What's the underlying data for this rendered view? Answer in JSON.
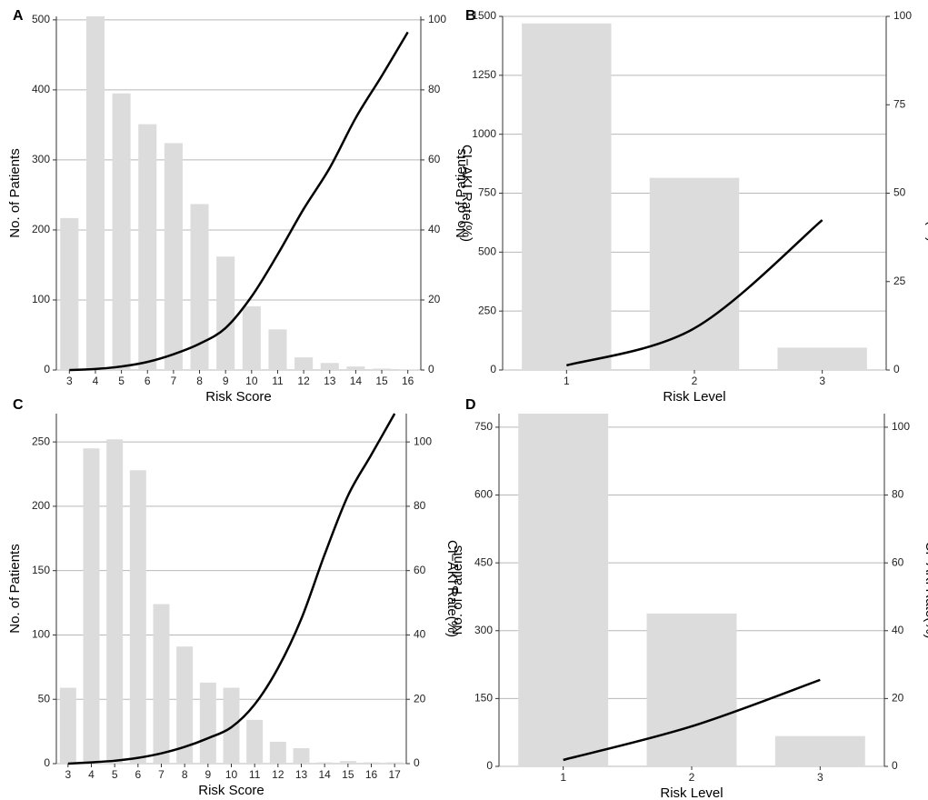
{
  "chart_data": [
    {
      "type": "bar",
      "title": "A",
      "x_label": "Risk Score",
      "y_label": "No. of Patients",
      "y2_label": "CI−AKI Rate(%)",
      "categories": [
        "3",
        "4",
        "5",
        "6",
        "7",
        "8",
        "9",
        "10",
        "11",
        "12",
        "13",
        "14",
        "15",
        "16"
      ],
      "series": [
        {
          "type": "bar",
          "color": "#dcdcdc",
          "values": [
            217,
            505,
            395,
            351,
            324,
            237,
            162,
            91,
            58,
            18,
            10,
            5,
            2,
            1
          ]
        },
        {
          "type": "line",
          "color": "#000000",
          "axis": "y2",
          "values": [
            0,
            0.3,
            1,
            2.3,
            4.5,
            7.5,
            12,
            21,
            33,
            46,
            57.7,
            72,
            84,
            96.5
          ]
        }
      ],
      "ylim": [
        0,
        505
      ],
      "yticks": [
        0,
        100,
        200,
        300,
        400,
        500
      ],
      "y2lim": [
        0,
        101
      ],
      "y2ticks": [
        0,
        20,
        40,
        60,
        80,
        100
      ],
      "grid": true
    },
    {
      "type": "bar",
      "title": "B",
      "x_label": "Risk Level",
      "y_label": "No. of Patients",
      "y2_label": "CI−AKI Rate(%)",
      "categories": [
        "1",
        "2",
        "3"
      ],
      "series": [
        {
          "type": "bar",
          "color": "#dcdcdc",
          "values": [
            1470,
            815,
            95
          ]
        },
        {
          "type": "line",
          "color": "#000000",
          "axis": "y2",
          "values": [
            1.3,
            11.8,
            42.4
          ]
        }
      ],
      "ylim": [
        0,
        1500
      ],
      "yticks": [
        0,
        250,
        500,
        750,
        1000,
        1250,
        1500
      ],
      "y2lim": [
        0,
        100
      ],
      "y2ticks": [
        0,
        25,
        50,
        75,
        100
      ],
      "grid": true
    },
    {
      "type": "bar",
      "title": "C",
      "x_label": "Risk Score",
      "y_label": "No. of Patients",
      "y2_label": "CI−AKI Rate(%)",
      "categories": [
        "3",
        "4",
        "5",
        "6",
        "7",
        "8",
        "9",
        "10",
        "11",
        "12",
        "13",
        "14",
        "15",
        "16",
        "17"
      ],
      "series": [
        {
          "type": "bar",
          "color": "#dcdcdc",
          "values": [
            59,
            245,
            252,
            228,
            124,
            91,
            63,
            59,
            34,
            17,
            12,
            1,
            2,
            1,
            1
          ]
        },
        {
          "type": "line",
          "color": "#000000",
          "axis": "y2",
          "values": [
            0,
            0.4,
            0.9,
            1.8,
            3.2,
            5.2,
            7.9,
            11.3,
            18.4,
            29.7,
            45,
            65,
            83.3,
            96,
            108.8
          ]
        }
      ],
      "ylim": [
        0,
        272
      ],
      "yticks": [
        0,
        50,
        100,
        150,
        200,
        250
      ],
      "y2lim": [
        0,
        108.8
      ],
      "y2ticks": [
        0,
        20,
        40,
        60,
        80,
        100
      ],
      "grid": true
    },
    {
      "type": "bar",
      "title": "D",
      "x_label": "Risk Level",
      "y_label": "No. of Patients",
      "y2_label": "CI−AKI Rate(%)",
      "categories": [
        "1",
        "2",
        "3"
      ],
      "series": [
        {
          "type": "bar",
          "color": "#dcdcdc",
          "values": [
            780,
            338,
            67
          ]
        },
        {
          "type": "line",
          "color": "#000000",
          "axis": "y2",
          "values": [
            1.9,
            11.8,
            25.5
          ]
        }
      ],
      "ylim": [
        0,
        780
      ],
      "yticks": [
        0,
        150,
        300,
        450,
        600,
        750
      ],
      "y2lim": [
        0,
        104
      ],
      "y2ticks": [
        0,
        20,
        40,
        60,
        80,
        100
      ],
      "grid": true
    }
  ]
}
